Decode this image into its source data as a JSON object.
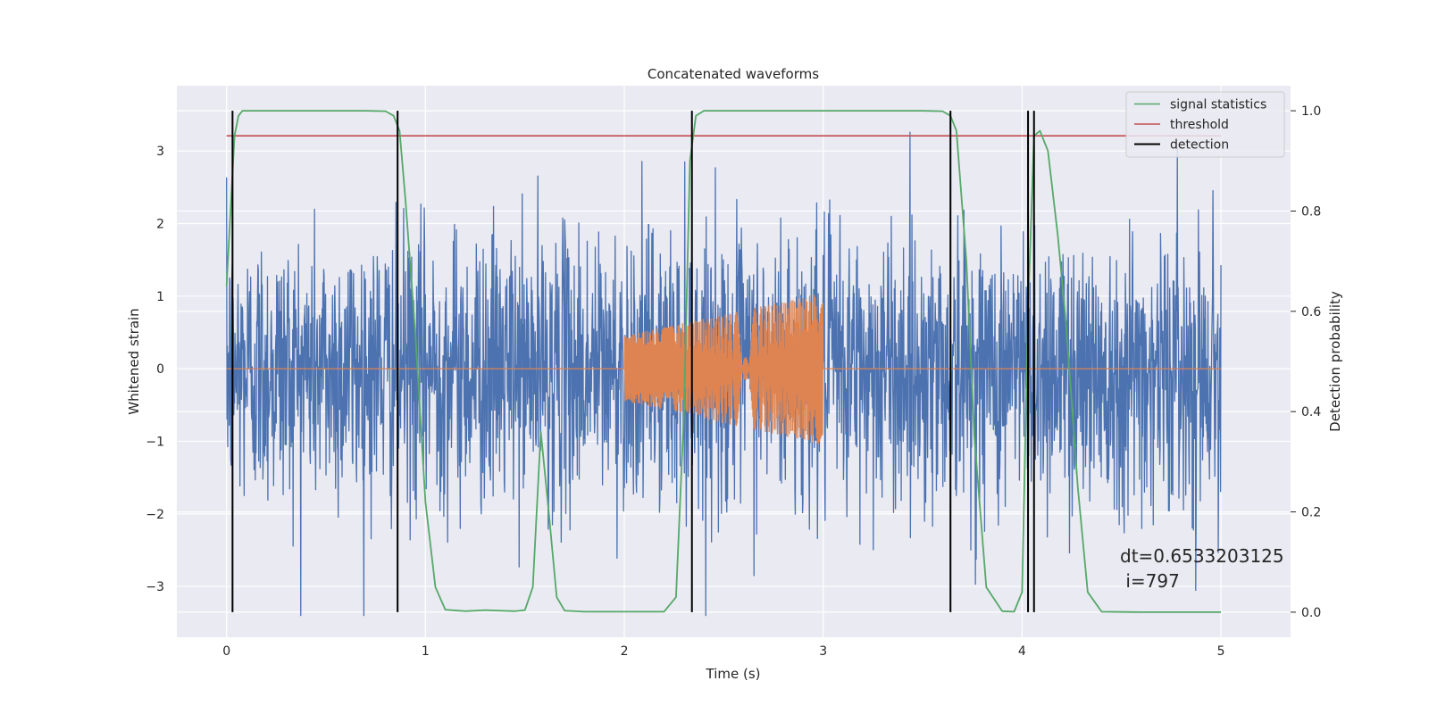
{
  "chart_data": {
    "type": "line",
    "title": "Concatenated waveforms",
    "xlabel": "Time (s)",
    "ylabel_left": "Whitened strain",
    "ylabel_right": "Detection probability",
    "xlim": [
      -0.25,
      5.35
    ],
    "ylim_left": [
      -3.7,
      3.9
    ],
    "ylim_right": [
      -0.05,
      1.05
    ],
    "x_ticks": [
      0,
      1,
      2,
      3,
      4,
      5
    ],
    "x_tick_labels": [
      "0",
      "1",
      "2",
      "3",
      "4",
      "5"
    ],
    "y_left_ticks": [
      -3,
      -2,
      -1,
      0,
      1,
      2,
      3
    ],
    "y_left_tick_labels": [
      "−3",
      "−2",
      "−1",
      "0",
      "1",
      "2",
      "3"
    ],
    "y_right_ticks": [
      0.0,
      0.2,
      0.4,
      0.6,
      0.8,
      1.0
    ],
    "y_right_tick_labels": [
      "0.0",
      "0.2",
      "0.4",
      "0.6",
      "0.8",
      "1.0"
    ],
    "grid": true,
    "legend_position": "top-right",
    "series": [
      {
        "name": "",
        "kind": "noise",
        "axis": "left",
        "color": "#4c72b0",
        "x_range": [
          0,
          5
        ],
        "typical_amplitude": 1.0,
        "peak_max": 3.55,
        "peak_min": -3.4
      },
      {
        "name": "",
        "kind": "chirp",
        "axis": "left",
        "color": "#dd8452",
        "x_range": [
          0,
          5
        ],
        "chirp_start": 2.0,
        "chirp_end": 3.0,
        "amplitude_start": 0.45,
        "amplitude_end": 1.05
      },
      {
        "name": "signal statistics",
        "axis": "right",
        "color": "#55a868",
        "x": [
          0.0,
          0.02,
          0.04,
          0.06,
          0.08,
          0.12,
          0.2,
          0.5,
          0.7,
          0.8,
          0.84,
          0.87,
          0.9,
          0.95,
          1.0,
          1.05,
          1.1,
          1.2,
          1.3,
          1.45,
          1.5,
          1.54,
          1.58,
          1.62,
          1.66,
          1.7,
          1.8,
          2.0,
          2.2,
          2.26,
          2.3,
          2.33,
          2.36,
          2.4,
          2.45,
          2.5,
          2.8,
          3.2,
          3.5,
          3.6,
          3.64,
          3.67,
          3.72,
          3.76,
          3.82,
          3.9,
          3.96,
          4.0,
          4.03,
          4.06,
          4.09,
          4.13,
          4.18,
          4.22,
          4.28,
          4.33,
          4.4,
          4.6,
          5.0
        ],
        "y": [
          0.65,
          0.8,
          0.95,
          0.99,
          1.0,
          1.0,
          1.0,
          1.0,
          1.0,
          0.999,
          0.99,
          0.96,
          0.82,
          0.55,
          0.22,
          0.05,
          0.005,
          0.002,
          0.004,
          0.002,
          0.004,
          0.05,
          0.36,
          0.2,
          0.03,
          0.003,
          0.001,
          0.001,
          0.001,
          0.03,
          0.4,
          0.9,
          0.99,
          1.0,
          1.0,
          1.0,
          1.0,
          1.0,
          1.0,
          0.999,
          0.99,
          0.96,
          0.7,
          0.35,
          0.05,
          0.002,
          0.001,
          0.04,
          0.6,
          0.95,
          0.96,
          0.92,
          0.75,
          0.58,
          0.25,
          0.04,
          0.001,
          0.0,
          0.0
        ]
      },
      {
        "name": "threshold",
        "axis": "right",
        "color": "#c44e52",
        "x": [
          0,
          5
        ],
        "y": [
          0.95,
          0.95
        ]
      },
      {
        "name": "detection",
        "axis": "right",
        "color": "#000000",
        "vlines_x": [
          0.03,
          0.86,
          2.34,
          3.64,
          4.03,
          4.06
        ],
        "vline_ymin": 0.0,
        "vline_ymax": 1.0
      }
    ],
    "annotation": {
      "line1": "dt=0.6533203125",
      "line2": " i=797"
    }
  }
}
